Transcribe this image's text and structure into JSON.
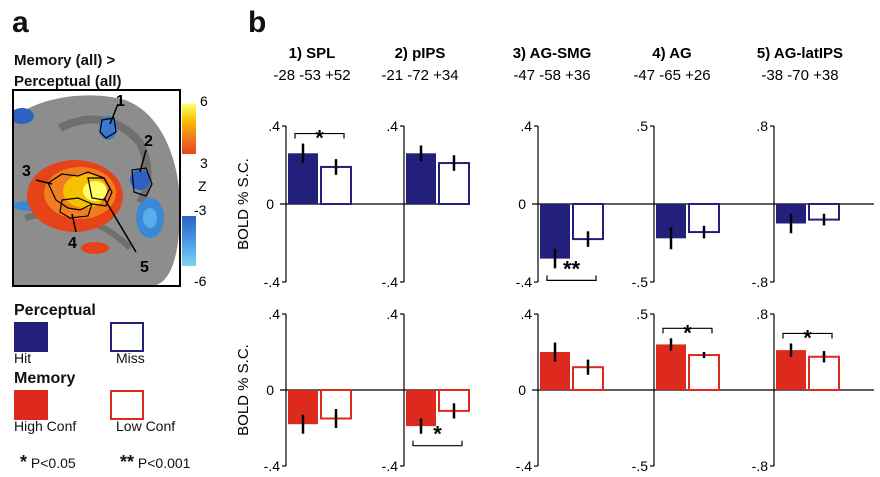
{
  "panel_a": {
    "letter": "a",
    "contrast_line1": "Memory (all)  >",
    "contrast_line2": "Perceptual (all)",
    "colorbar": {
      "label": "Z",
      "ticks": [
        "6",
        "3",
        "-3",
        "-6"
      ],
      "pos_colors": [
        "#ffff66",
        "#f6c100",
        "#f07d1e",
        "#e64418"
      ],
      "neg_colors": [
        "#2c62c4",
        "#3b88d8",
        "#57aeea",
        "#7fd1f5"
      ]
    },
    "roi_numbers": [
      "1",
      "2",
      "3",
      "4",
      "5"
    ],
    "legend": {
      "perceptual_heading": "Perceptual",
      "hit_label": "Hit",
      "miss_label": "Miss",
      "memory_heading": "Memory",
      "high_label": "High Conf",
      "low_label": "Low Conf",
      "sig1_star": "*",
      "sig1_text": "P<0.05",
      "sig2_star": "**",
      "sig2_text": "P<0.001"
    }
  },
  "panel_b": {
    "letter": "b"
  },
  "colors": {
    "perceptual": "#22207a",
    "memory": "#de2a1e"
  },
  "chart_data": {
    "type": "bar",
    "letter": "b",
    "ylabel": "BOLD % S.C.",
    "regions": [
      {
        "name": "1) SPL",
        "coords": "-28 -53 +52",
        "ylim": [
          -0.4,
          0.4
        ],
        "tick_top": ".4",
        "tick_mid": "0",
        "tick_bottom": "-.4"
      },
      {
        "name": "2) pIPS",
        "coords": "-21 -72 +34",
        "ylim": [
          -0.4,
          0.4
        ],
        "tick_top": ".4",
        "tick_mid": "0",
        "tick_bottom": "-.4"
      },
      {
        "name": "3) AG-SMG",
        "coords": "-47 -58 +36",
        "ylim": [
          -0.4,
          0.4
        ],
        "tick_top": ".4",
        "tick_mid": "0",
        "tick_bottom": "-.4"
      },
      {
        "name": "4) AG",
        "coords": "-47 -65 +26",
        "ylim": [
          -0.5,
          0.5
        ],
        "tick_top": ".5",
        "tick_mid": "0",
        "tick_bottom": "-.5"
      },
      {
        "name": "5) AG-latIPS",
        "coords": "-38 -70 +38",
        "ylim": [
          -0.8,
          0.8
        ],
        "tick_top": ".8",
        "tick_mid": "0",
        "tick_bottom": "-.8"
      }
    ],
    "rows": [
      {
        "task": "Perceptual",
        "series": [
          {
            "name": "Hit",
            "values": [
              0.26,
              0.26,
              -0.28,
              -0.22,
              -0.2
            ]
          },
          {
            "name": "Miss",
            "values": [
              0.19,
              0.21,
              -0.18,
              -0.18,
              -0.16
            ]
          }
        ],
        "errors": [
          [
            0.05,
            0.04,
            0.05,
            0.07,
            0.1
          ],
          [
            0.04,
            0.04,
            0.04,
            0.04,
            0.06
          ]
        ],
        "significance": [
          {
            "region": 0,
            "marker": "*",
            "side": "top"
          },
          {
            "region": 2,
            "marker": "**",
            "side": "bottom"
          }
        ]
      },
      {
        "task": "Memory",
        "series": [
          {
            "name": "High Conf",
            "values": [
              -0.18,
              -0.19,
              0.2,
              0.3,
              0.42
            ]
          },
          {
            "name": "Low Conf",
            "values": [
              -0.15,
              -0.11,
              0.12,
              0.23,
              0.35
            ]
          }
        ],
        "errors": [
          [
            0.05,
            0.04,
            0.05,
            0.04,
            0.07
          ],
          [
            0.05,
            0.04,
            0.04,
            0.02,
            0.06
          ]
        ],
        "significance": [
          {
            "region": 1,
            "marker": "*",
            "side": "bottom"
          },
          {
            "region": 3,
            "marker": "*",
            "side": "top"
          },
          {
            "region": 4,
            "marker": "*",
            "side": "top"
          }
        ]
      }
    ]
  }
}
